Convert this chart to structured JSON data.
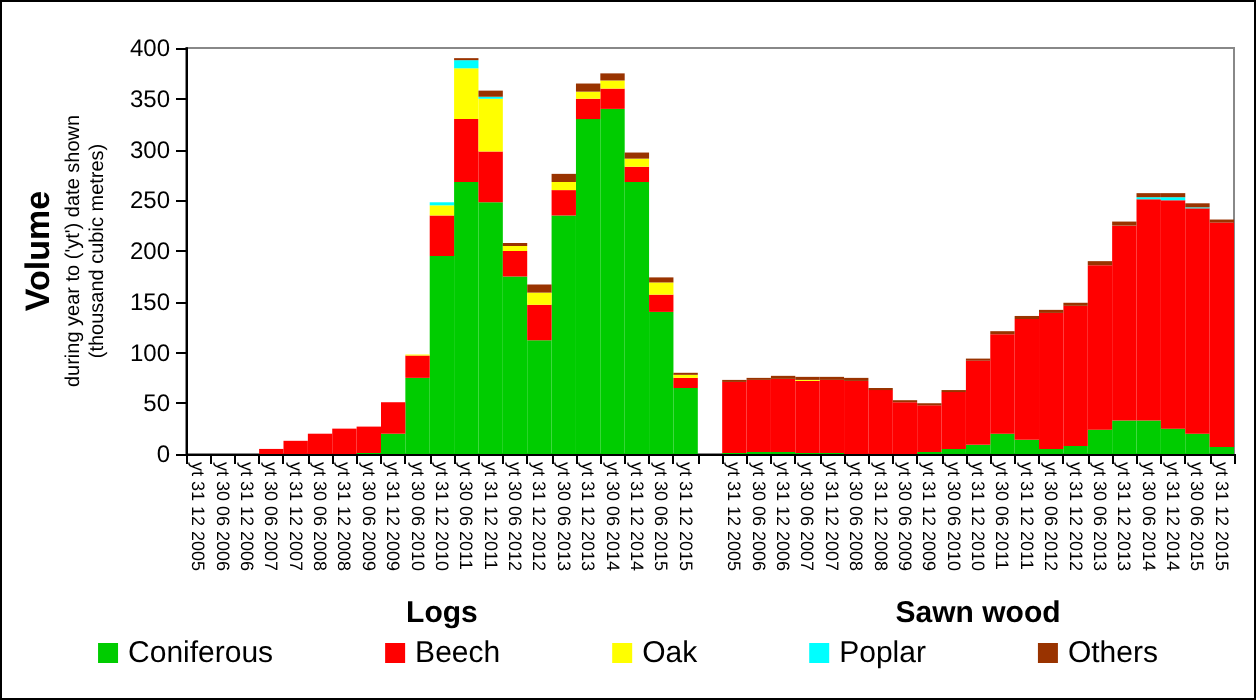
{
  "chart_data": {
    "type": "bar",
    "stacked": true,
    "ylabel": "Volume\nduring year to ('yt') date shown\n(thousand cubic metres)",
    "categories": [
      "yt 31 12 2005",
      "yt 30 06 2006",
      "yt 31 12 2006",
      "yt 30 06 2007",
      "yt 31 12 2007",
      "yt 30 06 2008",
      "yt 31 12 2008",
      "yt 30 06 2009",
      "yt 31 12 2009",
      "yt 30 06 2010",
      "yt 31 12 2010",
      "yt 30 06 2011",
      "yt 31 12 2011",
      "yt 30 06 2012",
      "yt 31 12 2012",
      "yt 30 06 2013",
      "yt 31 12 2013",
      "yt 30 06 2014",
      "yt 31 12 2014",
      "yt 30 06 2015",
      "yt 31 12 2015",
      null,
      "yt 31 12 2005",
      "yt 30 06 2006",
      "yt 31 12 2006",
      "yt 30 06 2007",
      "yt 31 12 2007",
      "yt 30 06 2008",
      "yt 31 12 2008",
      "yt 30 06 2009",
      "yt 31 12 2009",
      "yt 30 06 2010",
      "yt 31 12 2010",
      "yt 30 06 2011",
      "yt 31 12 2011",
      "yt 30 06 2012",
      "yt 31 12 2012",
      "yt 30 06 2013",
      "yt 31 12 2013",
      "yt 30 06 2014",
      "yt 31 12 2014",
      "yt 30 06 2015",
      "yt 31 12 2015"
    ],
    "series": [
      {
        "name": "Coniferous",
        "color": "#00cc00",
        "values": [
          0,
          0,
          0,
          0,
          0,
          0,
          0,
          1,
          20,
          75,
          195,
          268,
          248,
          175,
          112,
          235,
          330,
          340,
          268,
          140,
          65,
          null,
          1,
          2,
          2,
          1,
          1,
          0,
          0,
          0,
          2,
          5,
          9,
          20,
          14,
          5,
          8,
          24,
          33,
          33,
          25,
          20,
          7
        ]
      },
      {
        "name": "Beech",
        "color": "#ff0000",
        "values": [
          0,
          0,
          0,
          5,
          13,
          20,
          25,
          26,
          31,
          22,
          40,
          62,
          50,
          25,
          35,
          25,
          20,
          20,
          15,
          17,
          10,
          null,
          70,
          71,
          72,
          71,
          72,
          72,
          63,
          51,
          46,
          56,
          83,
          98,
          119,
          134,
          138,
          162,
          192,
          218,
          225,
          222,
          221
        ]
      },
      {
        "name": "Oak",
        "color": "#ffff00",
        "values": [
          0,
          0,
          0,
          0,
          0,
          0,
          0,
          0,
          0,
          1,
          10,
          50,
          52,
          5,
          12,
          8,
          7,
          8,
          8,
          12,
          3,
          null,
          0,
          0,
          0,
          1,
          0,
          0,
          0,
          0,
          0,
          0,
          0,
          0,
          0,
          0,
          0,
          0,
          0,
          0,
          0,
          0,
          0
        ]
      },
      {
        "name": "Poplar",
        "color": "#00ffff",
        "values": [
          0,
          0,
          0,
          0,
          0,
          0,
          0,
          0,
          0,
          0,
          3,
          8,
          2,
          0,
          0,
          0,
          0,
          0,
          0,
          0,
          0,
          null,
          0,
          0,
          0,
          0,
          0,
          0,
          0,
          0,
          0,
          0,
          0,
          0,
          0,
          0,
          0,
          0,
          0,
          2,
          3,
          1,
          0
        ]
      },
      {
        "name": "Others",
        "color": "#993300",
        "values": [
          0,
          0,
          0,
          0,
          0,
          0,
          0,
          0,
          0,
          0,
          0,
          2,
          6,
          3,
          8,
          8,
          8,
          7,
          6,
          5,
          2,
          null,
          2,
          2,
          3,
          3,
          3,
          3,
          2,
          2,
          2,
          2,
          2,
          3,
          3,
          3,
          3,
          4,
          4,
          4,
          4,
          4,
          3
        ]
      }
    ],
    "ylim": [
      0,
      400
    ],
    "yticks": [
      0,
      50,
      100,
      150,
      200,
      250,
      300,
      350,
      400
    ],
    "annotations": [
      "Logs",
      "Sawn wood"
    ],
    "legend": "bottom"
  }
}
